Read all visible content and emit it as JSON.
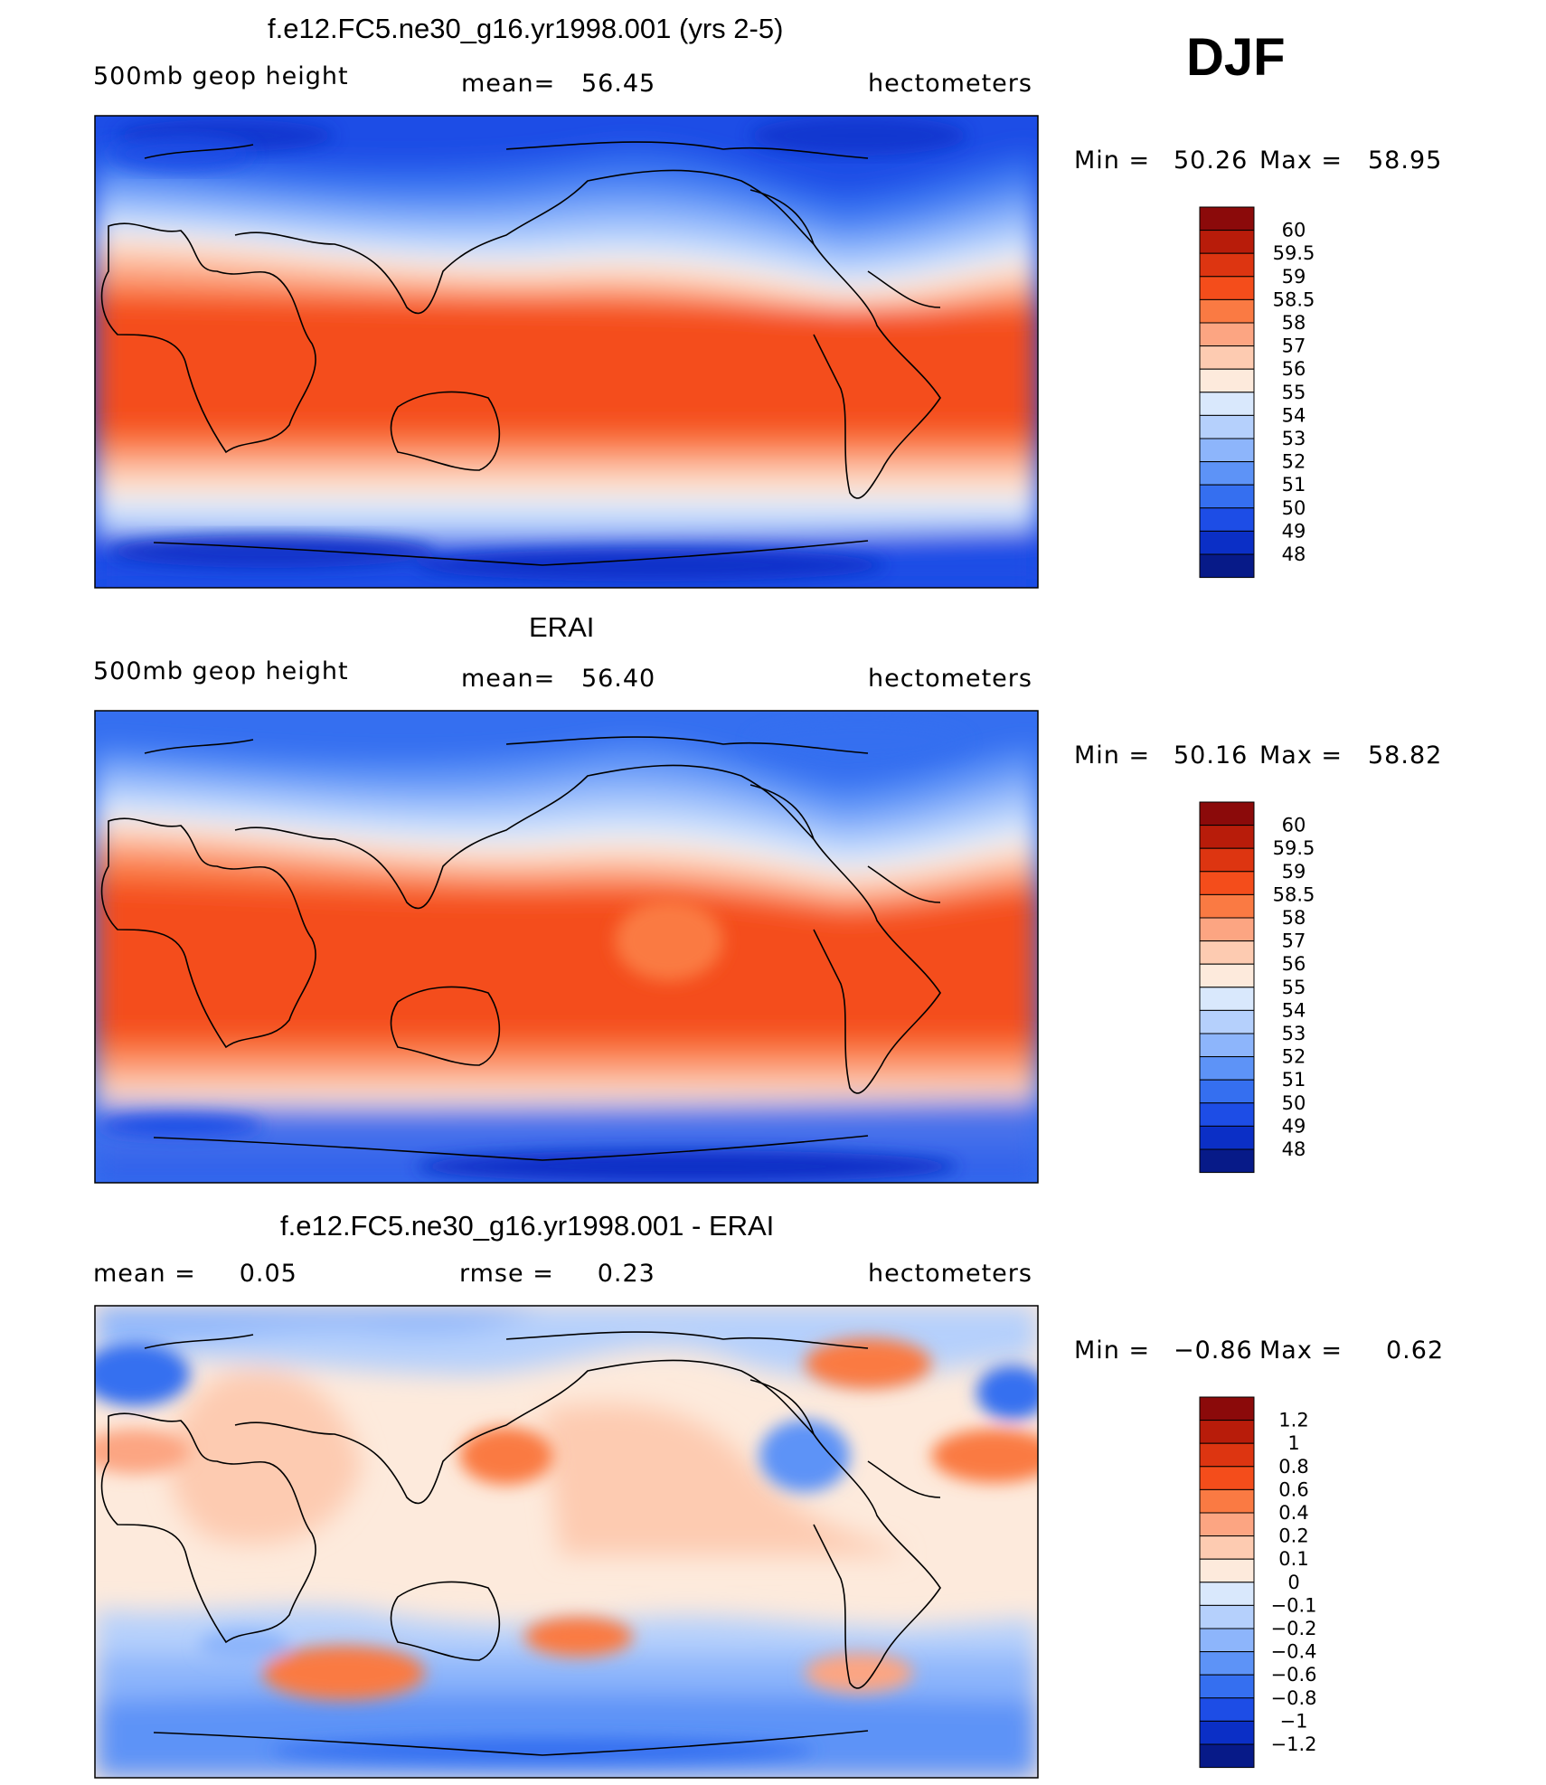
{
  "season": "DJF",
  "panels": [
    {
      "title": "f.e12.FC5.ne30_g16.yr1998.001 (yrs 2-5)",
      "left_label": "500mb geop height",
      "center_label": "mean=   56.45",
      "right_label": "hectometers",
      "min_label": "Min =",
      "min_value": "50.26",
      "max_label": "Max =",
      "max_value": "58.95"
    },
    {
      "title": "ERAI",
      "left_label": "500mb geop height",
      "center_label": "mean=   56.40",
      "right_label": "hectometers",
      "min_label": "Min =",
      "min_value": "50.16",
      "max_label": "Max =",
      "max_value": "58.82"
    },
    {
      "title": "f.e12.FC5.ne30_g16.yr1998.001 - ERAI",
      "left_label": "mean =     0.05",
      "center_label": "rmse =     0.23",
      "right_label": "hectometers",
      "min_label": "Min =",
      "min_value": "−0.86",
      "max_label": "Max =",
      "max_value": "0.62"
    }
  ],
  "chart_data": [
    {
      "type": "heatmap",
      "title": "f.e12.FC5.ne30_g16.yr1998.001 (yrs 2-5)",
      "variable": "500mb geop height",
      "units": "hectometers",
      "mean": 56.45,
      "min": 50.26,
      "max": 58.95,
      "colorbar_ticks": [
        "60",
        "59.5",
        "59",
        "58.5",
        "58",
        "57",
        "56",
        "55",
        "54",
        "53",
        "52",
        "51",
        "50",
        "49",
        "48"
      ],
      "colors": [
        "#8b0a0a",
        "#b81c0a",
        "#dd3511",
        "#f44d1b",
        "#fa7a43",
        "#fca582",
        "#fdcbb1",
        "#fdeadc",
        "#d9e8fc",
        "#b5d0fc",
        "#8db5fb",
        "#5d93f7",
        "#356ff0",
        "#1d4de6",
        "#0b2fc6",
        "#071a88"
      ]
    },
    {
      "type": "heatmap",
      "title": "ERAI",
      "variable": "500mb geop height",
      "units": "hectometers",
      "mean": 56.4,
      "min": 50.16,
      "max": 58.82,
      "colorbar_ticks": [
        "60",
        "59.5",
        "59",
        "58.5",
        "58",
        "57",
        "56",
        "55",
        "54",
        "53",
        "52",
        "51",
        "50",
        "49",
        "48"
      ],
      "colors": [
        "#8b0a0a",
        "#b81c0a",
        "#dd3511",
        "#f44d1b",
        "#fa7a43",
        "#fca582",
        "#fdcbb1",
        "#fdeadc",
        "#d9e8fc",
        "#b5d0fc",
        "#8db5fb",
        "#5d93f7",
        "#356ff0",
        "#1d4de6",
        "#0b2fc6",
        "#071a88"
      ]
    },
    {
      "type": "heatmap",
      "title": "f.e12.FC5.ne30_g16.yr1998.001 - ERAI",
      "units": "hectometers",
      "mean": 0.05,
      "rmse": 0.23,
      "min": -0.86,
      "max": 0.62,
      "colorbar_ticks": [
        "1.2",
        "1",
        "0.8",
        "0.6",
        "0.4",
        "0.2",
        "0.1",
        "0",
        "−0.1",
        "−0.2",
        "−0.4",
        "−0.6",
        "−0.8",
        "−1",
        "−1.2"
      ],
      "colors": [
        "#8b0a0a",
        "#b81c0a",
        "#dd3511",
        "#f44d1b",
        "#fa7a43",
        "#fca582",
        "#fdcbb1",
        "#fdeadc",
        "#d9e8fc",
        "#b5d0fc",
        "#8db5fb",
        "#5d93f7",
        "#356ff0",
        "#1d4de6",
        "#0b2fc6",
        "#071a88"
      ]
    }
  ]
}
